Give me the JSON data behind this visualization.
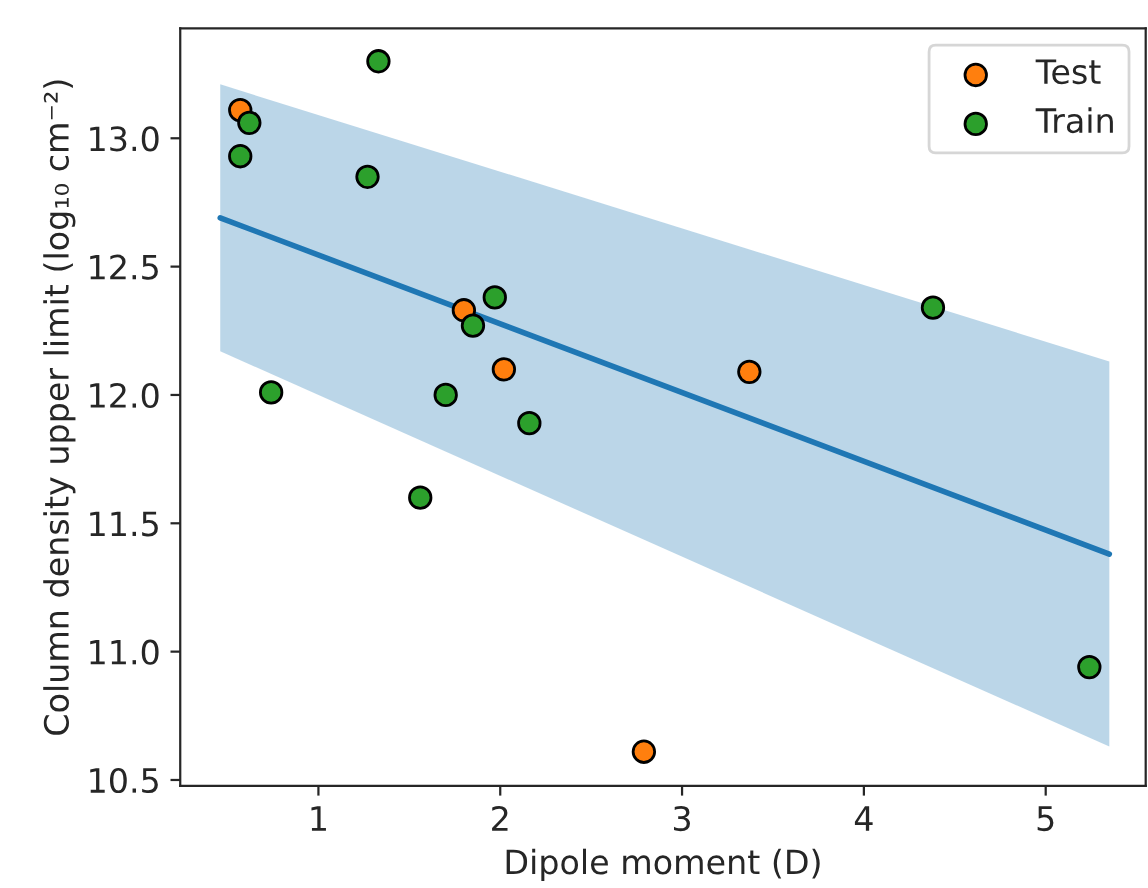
{
  "chart_data": {
    "type": "scatter",
    "xlabel": "Dipole moment (D)",
    "ylabel": "Column density upper limit (log₁₀ cm⁻²)",
    "xlim": [
      0.24,
      5.55
    ],
    "ylim": [
      10.477,
      13.428
    ],
    "xticks": [
      1,
      2,
      3,
      4,
      5
    ],
    "yticks": [
      10.5,
      {
        "value": 11,
        "label": "11.0"
      },
      11.5,
      {
        "value": 12,
        "label": "12.0"
      },
      12.5,
      {
        "value": 13,
        "label": "13.0"
      }
    ],
    "grid": false,
    "legend": "top right",
    "series": [
      {
        "type": "line",
        "marker": "none",
        "color": "#1f77b4",
        "x": [
          0.46,
          5.35
        ],
        "values": [
          12.69,
          11.38
        ],
        "lower": [
          12.17,
          10.63
        ],
        "upper": [
          13.21,
          12.13
        ]
      },
      {
        "name": "Test",
        "marker": "circle",
        "color": "#ff7f0e",
        "x": [
          0.57,
          2.02,
          3.37,
          2.79,
          1.8
        ],
        "values": [
          13.11,
          12.1,
          12.09,
          10.61,
          12.33
        ]
      },
      {
        "name": "Train",
        "marker": "circle",
        "color": "#2ca02c",
        "x": [
          1.33,
          0.62,
          0.57,
          1.27,
          0.74,
          1.97,
          1.85,
          1.7,
          2.16,
          1.56,
          4.38,
          5.24
        ],
        "values": [
          13.3,
          13.06,
          12.93,
          12.85,
          12.01,
          12.38,
          12.27,
          12.0,
          11.89,
          11.6,
          12.34,
          10.94
        ]
      }
    ]
  }
}
